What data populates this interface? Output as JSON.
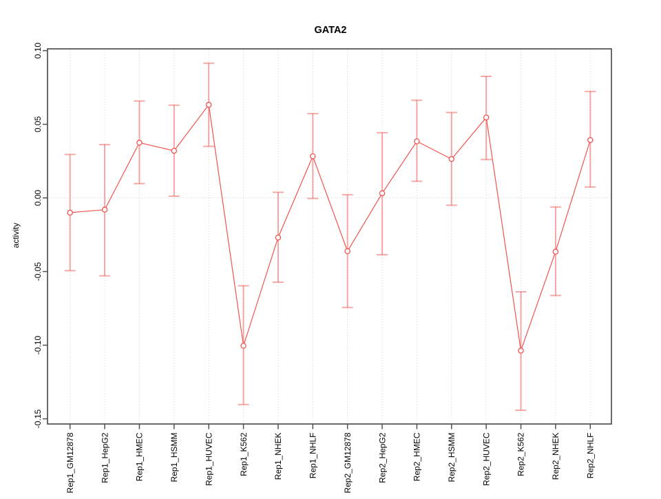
{
  "chart_data": {
    "type": "line",
    "title": "GATA2",
    "ylabel": "activity",
    "xlabel": "",
    "legend": "none",
    "marker": "open-circle",
    "grid": {
      "vertical_per_category": true,
      "horizontal_zero_line": true,
      "style": "dotted"
    },
    "categories": [
      "Rep1_GM12878",
      "Rep1_HepG2",
      "Rep1_HMEC",
      "Rep1_HSMM",
      "Rep1_HUVEC",
      "Rep1_K562",
      "Rep1_NHEK",
      "Rep1_NHLF",
      "Rep2_GM12878",
      "Rep2_HepG2",
      "Rep2_HMEC",
      "Rep2_HSMM",
      "Rep2_HUVEC",
      "Rep2_K562",
      "Rep2_NHEK",
      "Rep2_NHLF"
    ],
    "series": [
      {
        "name": "activity",
        "values": [
          -0.01,
          -0.008,
          0.0375,
          0.032,
          0.0632,
          -0.1004,
          -0.0269,
          0.0283,
          -0.0362,
          0.0032,
          0.0384,
          0.0264,
          0.0546,
          -0.1037,
          -0.0365,
          0.0393
        ],
        "error_high": [
          0.0295,
          0.0362,
          0.0658,
          0.063,
          0.0915,
          -0.0597,
          0.0038,
          0.0572,
          0.0022,
          0.0443,
          0.0663,
          0.058,
          0.0825,
          -0.0638,
          -0.0062,
          0.0723
        ],
        "error_low": [
          -0.0494,
          -0.0529,
          0.0097,
          0.0012,
          0.035,
          -0.1403,
          -0.0572,
          -0.0004,
          -0.0744,
          -0.0386,
          0.0113,
          -0.005,
          0.0261,
          -0.1442,
          -0.0663,
          0.0074
        ]
      }
    ],
    "ytick_labels": [
      "0.10",
      "0.05",
      "0.00",
      "-0.05",
      "-0.10",
      "-0.15"
    ],
    "ytick_values": [
      0.1,
      0.05,
      0.0,
      -0.05,
      -0.1,
      -0.15
    ],
    "ylim": [
      -0.1535,
      0.1012
    ],
    "colors": {
      "series": "#ef5350",
      "error_bar": "rgba(239,83,80,0.5)",
      "grid": "#dcdcdc",
      "axis": "#4f4f4f",
      "text": "#000000",
      "background": "#ffffff"
    }
  }
}
